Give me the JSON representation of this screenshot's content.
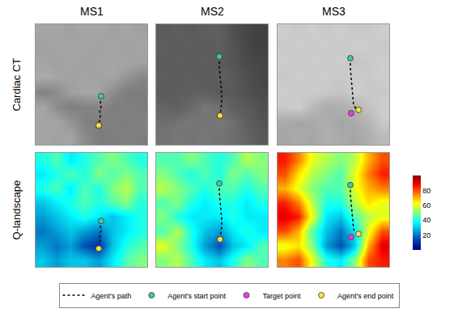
{
  "column_titles": [
    "MS1",
    "MS2",
    "MS3"
  ],
  "row_titles": [
    "Cardiac CT",
    "Q-landscape"
  ],
  "legend": "bottom",
  "chart_data": [
    {
      "type": "heatmap",
      "color": "gray",
      "zlim": [
        0,
        255
      ],
      "xlim": [
        0,
        100
      ],
      "ylim": [
        0,
        100
      ],
      "tick_labels": false,
      "cells": [
        [
          165,
          165,
          160,
          165,
          165,
          160,
          165,
          160
        ],
        [
          160,
          165,
          165,
          165,
          160,
          165,
          160,
          165
        ],
        [
          165,
          160,
          165,
          160,
          165,
          165,
          165,
          160
        ],
        [
          170,
          165,
          160,
          165,
          160,
          165,
          150,
          135
        ],
        [
          130,
          140,
          160,
          165,
          165,
          140,
          125,
          125
        ],
        [
          165,
          140,
          125,
          130,
          135,
          125,
          130,
          125
        ],
        [
          165,
          165,
          150,
          130,
          125,
          130,
          125,
          130
        ],
        [
          165,
          160,
          165,
          140,
          125,
          125,
          130,
          125
        ]
      ],
      "series": [
        {
          "name": "Agent's path",
          "color": "#000000",
          "line_style": "dotted",
          "x": [
            58.7,
            58.0,
            58.7,
            57.5,
            58.0,
            57.0,
            56.5
          ],
          "y": [
            40.3,
            36,
            32,
            28,
            24,
            20,
            16.1
          ]
        },
        {
          "name": "Agent's start point",
          "color": "#3cc8b4",
          "marker": "circle",
          "x": [
            58.7
          ],
          "y": [
            40.3
          ]
        },
        {
          "name": "Target point",
          "color": "#e83ee8",
          "marker": "circle",
          "x": [
            56.5
          ],
          "y": [
            16.1
          ]
        },
        {
          "name": "Agent's end point",
          "color": "#f5e642",
          "marker": "circle",
          "x": [
            56.5
          ],
          "y": [
            16.1
          ]
        }
      ]
    },
    {
      "type": "heatmap",
      "color": "gray",
      "zlim": [
        0,
        255
      ],
      "xlim": [
        0,
        100
      ],
      "ylim": [
        0,
        100
      ],
      "tick_labels": false,
      "cells": [
        [
          90,
          95,
          90,
          95,
          95,
          80,
          70,
          65
        ],
        [
          95,
          90,
          95,
          90,
          95,
          85,
          70,
          65
        ],
        [
          90,
          95,
          90,
          95,
          90,
          85,
          75,
          70
        ],
        [
          95,
          90,
          95,
          90,
          95,
          90,
          80,
          70
        ],
        [
          90,
          95,
          95,
          95,
          90,
          90,
          80,
          75
        ],
        [
          100,
          95,
          105,
          120,
          110,
          95,
          90,
          80
        ],
        [
          110,
          115,
          120,
          115,
          120,
          110,
          95,
          85
        ],
        [
          115,
          120,
          115,
          120,
          115,
          110,
          100,
          90
        ]
      ],
      "series": [
        {
          "name": "Agent's path",
          "color": "#000000",
          "line_style": "dotted",
          "x": [
            56.5,
            56.5,
            57.2,
            58,
            58.7,
            58.7,
            58,
            57.2
          ],
          "y": [
            73.2,
            66,
            58,
            50,
            42,
            35,
            29,
            24.2
          ]
        },
        {
          "name": "Agent's start point",
          "color": "#3cc8b4",
          "marker": "circle",
          "x": [
            56.5
          ],
          "y": [
            73.2
          ]
        },
        {
          "name": "Target point",
          "color": "#e83ee8",
          "marker": "circle",
          "x": [
            57.2
          ],
          "y": [
            24.2
          ]
        },
        {
          "name": "Agent's end point",
          "color": "#f5e642",
          "marker": "circle",
          "x": [
            57.2
          ],
          "y": [
            24.2
          ]
        }
      ]
    },
    {
      "type": "heatmap",
      "color": "gray",
      "zlim": [
        0,
        255
      ],
      "xlim": [
        0,
        100
      ],
      "ylim": [
        0,
        100
      ],
      "tick_labels": false,
      "cells": [
        [
          205,
          200,
          205,
          200,
          205,
          200,
          200,
          205
        ],
        [
          200,
          205,
          200,
          205,
          200,
          205,
          205,
          200
        ],
        [
          205,
          200,
          205,
          200,
          205,
          195,
          200,
          205
        ],
        [
          200,
          205,
          200,
          205,
          200,
          205,
          200,
          205
        ],
        [
          205,
          200,
          205,
          200,
          195,
          205,
          200,
          200
        ],
        [
          200,
          205,
          185,
          170,
          175,
          180,
          195,
          205
        ],
        [
          170,
          165,
          170,
          175,
          165,
          170,
          180,
          200
        ],
        [
          165,
          170,
          165,
          175,
          170,
          165,
          175,
          185
        ]
      ],
      "series": [
        {
          "name": "Agent's path",
          "color": "#000000",
          "line_style": "dotted",
          "x": [
            65.2,
            65.2,
            65.9,
            66.6,
            67.4,
            68.1,
            70.3,
            72.5
          ],
          "y": [
            71.8,
            64,
            56,
            48,
            40,
            33,
            30,
            28.9
          ]
        },
        {
          "name": "Agent's start point",
          "color": "#3cc8b4",
          "marker": "circle",
          "x": [
            65.2
          ],
          "y": [
            71.8
          ]
        },
        {
          "name": "Target point",
          "color": "#e83ee8",
          "marker": "circle",
          "x": [
            65.9
          ],
          "y": [
            26.2
          ]
        },
        {
          "name": "Agent's end point",
          "color": "#f5e642",
          "marker": "circle",
          "x": [
            72.5
          ],
          "y": [
            28.9
          ]
        }
      ]
    },
    {
      "type": "heatmap",
      "color": "jet",
      "zlim": [
        0,
        100
      ],
      "xlim": [
        0,
        100
      ],
      "ylim": [
        0,
        100
      ],
      "tick_labels": false,
      "cells": [
        [
          40,
          45,
          35,
          40,
          45,
          50,
          45,
          40
        ],
        [
          35,
          40,
          45,
          40,
          50,
          45,
          50,
          45
        ],
        [
          40,
          45,
          35,
          45,
          40,
          50,
          55,
          45
        ],
        [
          30,
          35,
          40,
          45,
          40,
          45,
          50,
          40
        ],
        [
          25,
          30,
          35,
          40,
          35,
          30,
          35,
          40
        ],
        [
          20,
          25,
          30,
          25,
          20,
          30,
          35,
          40
        ],
        [
          25,
          20,
          25,
          15,
          10,
          30,
          40,
          45
        ],
        [
          30,
          25,
          30,
          30,
          25,
          35,
          45,
          50
        ]
      ],
      "series": [
        {
          "name": "Agent's path",
          "color": "#000000",
          "line_style": "dotted",
          "x": [
            58.7,
            58.0,
            58.7,
            57.5,
            58.0,
            57.0,
            56.5
          ],
          "y": [
            40.3,
            36,
            32,
            28,
            24,
            20,
            16.1
          ]
        },
        {
          "name": "Agent's start point",
          "color": "#3cc8b4",
          "marker": "circle",
          "x": [
            58.7
          ],
          "y": [
            40.3
          ]
        },
        {
          "name": "Target point",
          "color": "#e83ee8",
          "marker": "circle",
          "x": [
            56.5
          ],
          "y": [
            16.1
          ]
        },
        {
          "name": "Agent's end point",
          "color": "#f5e642",
          "marker": "circle",
          "x": [
            56.5
          ],
          "y": [
            16.1
          ]
        }
      ]
    },
    {
      "type": "heatmap",
      "color": "jet",
      "zlim": [
        0,
        100
      ],
      "xlim": [
        0,
        100
      ],
      "ylim": [
        0,
        100
      ],
      "tick_labels": false,
      "cells": [
        [
          45,
          45,
          50,
          45,
          40,
          45,
          55,
          50
        ],
        [
          50,
          45,
          40,
          45,
          40,
          50,
          45,
          50
        ],
        [
          55,
          50,
          45,
          40,
          45,
          45,
          40,
          45
        ],
        [
          45,
          50,
          40,
          35,
          40,
          40,
          35,
          40
        ],
        [
          50,
          40,
          35,
          35,
          35,
          40,
          35,
          35
        ],
        [
          45,
          55,
          40,
          30,
          25,
          35,
          40,
          35
        ],
        [
          60,
          50,
          40,
          25,
          15,
          30,
          35,
          45
        ],
        [
          50,
          55,
          45,
          35,
          30,
          40,
          50,
          45
        ]
      ],
      "series": [
        {
          "name": "Agent's path",
          "color": "#000000",
          "line_style": "dotted",
          "x": [
            56.5,
            56.5,
            57.2,
            58,
            58.7,
            58.7,
            58,
            57.2
          ],
          "y": [
            73.2,
            66,
            58,
            50,
            42,
            35,
            29,
            24.2
          ]
        },
        {
          "name": "Agent's start point",
          "color": "#3cc8b4",
          "marker": "circle",
          "x": [
            56.5
          ],
          "y": [
            73.2
          ]
        },
        {
          "name": "Target point",
          "color": "#e83ee8",
          "marker": "circle",
          "x": [
            57.2
          ],
          "y": [
            24.2
          ]
        },
        {
          "name": "Agent's end point",
          "color": "#f5e642",
          "marker": "circle",
          "x": [
            57.2
          ],
          "y": [
            24.2
          ]
        }
      ]
    },
    {
      "type": "heatmap",
      "color": "jet",
      "zlim": [
        0,
        100
      ],
      "xlim": [
        0,
        100
      ],
      "ylim": [
        0,
        100
      ],
      "tick_labels": false,
      "colorbar": {
        "range": [
          0,
          100
        ],
        "ticks": [
          20,
          40,
          60,
          80
        ]
      },
      "cells": [
        [
          85,
          75,
          60,
          55,
          50,
          55,
          70,
          80
        ],
        [
          80,
          65,
          55,
          50,
          45,
          60,
          75,
          85
        ],
        [
          70,
          60,
          50,
          45,
          45,
          60,
          70,
          75
        ],
        [
          85,
          75,
          55,
          40,
          40,
          55,
          65,
          60
        ],
        [
          90,
          85,
          60,
          35,
          30,
          45,
          55,
          60
        ],
        [
          80,
          70,
          45,
          30,
          20,
          35,
          60,
          80
        ],
        [
          60,
          65,
          50,
          25,
          15,
          30,
          70,
          90
        ],
        [
          75,
          80,
          60,
          40,
          35,
          50,
          80,
          85
        ]
      ],
      "series": [
        {
          "name": "Agent's path",
          "color": "#000000",
          "line_style": "dotted",
          "x": [
            65.2,
            65.2,
            65.9,
            66.6,
            67.4,
            68.1,
            70.3,
            72.5
          ],
          "y": [
            71.8,
            64,
            56,
            48,
            40,
            33,
            30,
            28.9
          ]
        },
        {
          "name": "Agent's start point",
          "color": "#3cc8b4",
          "marker": "circle",
          "x": [
            65.2
          ],
          "y": [
            71.8
          ]
        },
        {
          "name": "Target point",
          "color": "#e83ee8",
          "marker": "circle",
          "x": [
            65.9
          ],
          "y": [
            26.2
          ]
        },
        {
          "name": "Agent's end point",
          "color": "#f5e642",
          "marker": "circle",
          "x": [
            72.5
          ],
          "y": [
            28.9
          ]
        }
      ]
    }
  ]
}
